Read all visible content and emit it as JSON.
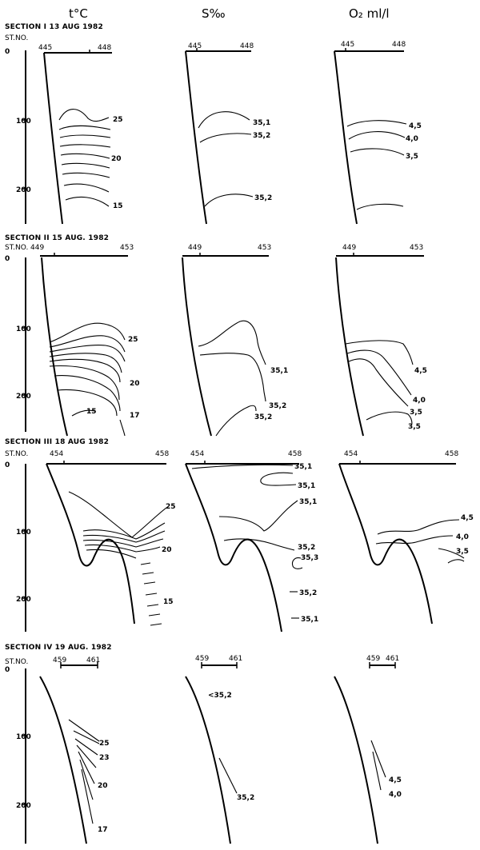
{
  "headers": {
    "temperature": "t°C",
    "salinity": "S‰",
    "oxygen": "O₂ ml/l"
  },
  "station_label": "ST.NO.",
  "sections": [
    {
      "title": "SECTION I  13 AUG 1982",
      "depth_ticks": [
        "0",
        "100",
        "200"
      ],
      "temperature": {
        "stations": [
          "445",
          "448"
        ],
        "labels": [
          "25",
          "20",
          "15"
        ]
      },
      "salinity": {
        "stations": [
          "445",
          "448"
        ],
        "labels": [
          "35,1",
          "35,2",
          "35,2"
        ]
      },
      "oxygen": {
        "stations": [
          "445",
          "448"
        ],
        "labels": [
          "4,5",
          "4,0",
          "3,5"
        ]
      }
    },
    {
      "title": "SECTION II  15 AUG. 1982",
      "depth_ticks": [
        "0",
        "100",
        "200"
      ],
      "temperature": {
        "stations": [
          "449",
          "453"
        ],
        "labels": [
          "25",
          "20",
          "15",
          "17"
        ]
      },
      "salinity": {
        "stations": [
          "449",
          "453"
        ],
        "labels": [
          "35,1",
          "35,2",
          "35,2"
        ]
      },
      "oxygen": {
        "stations": [
          "449",
          "453"
        ],
        "labels": [
          "4,5",
          "4,0",
          "3,5",
          "3,5"
        ]
      }
    },
    {
      "title": "SECTION III  18 AUG 1982",
      "depth_ticks": [
        "0",
        "100",
        "200"
      ],
      "temperature": {
        "stations": [
          "454",
          "458"
        ],
        "labels": [
          "25",
          "20",
          "15"
        ]
      },
      "salinity": {
        "stations": [
          "454",
          "458"
        ],
        "labels": [
          "35,1",
          "35,1",
          "35,1",
          "35,2",
          "35,3",
          "35,2",
          "35,1"
        ]
      },
      "oxygen": {
        "stations": [
          "454",
          "458"
        ],
        "labels": [
          "4,5",
          "4,0",
          "3,5"
        ]
      }
    },
    {
      "title": "SECTION IV  19 AUG. 1982",
      "depth_ticks": [
        "0",
        "100",
        "200"
      ],
      "temperature": {
        "stations": [
          "459",
          "461"
        ],
        "labels": [
          "25",
          "23",
          "20",
          "17"
        ]
      },
      "salinity": {
        "stations": [
          "459",
          "461"
        ],
        "labels": [
          "<35,2",
          "35,2"
        ]
      },
      "oxygen": {
        "stations": [
          "459",
          "461"
        ],
        "labels": [
          "4,5",
          "4,0"
        ]
      }
    }
  ]
}
